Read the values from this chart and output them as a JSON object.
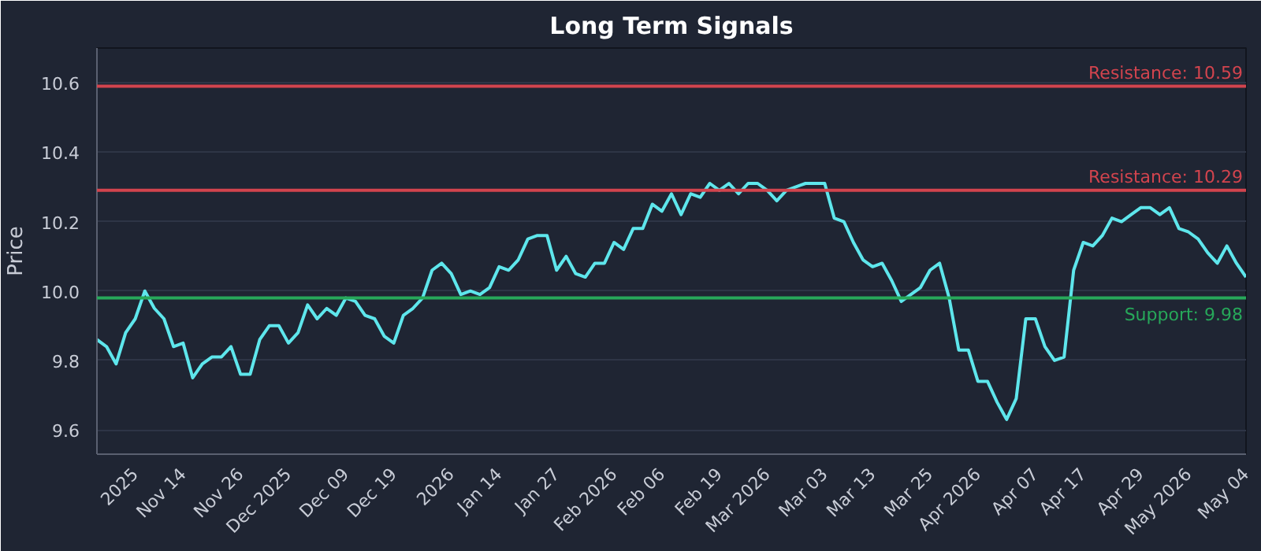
{
  "chart_data": {
    "type": "line",
    "title": "Long Term Signals",
    "ylabel": "Price",
    "categories": [
      null,
      null,
      null,
      null,
      "2025",
      null,
      null,
      null,
      null,
      "Nov 14",
      null,
      null,
      null,
      null,
      null,
      "Nov 26",
      null,
      null,
      null,
      null,
      "Dec 2025",
      null,
      null,
      null,
      null,
      null,
      "Dec 09",
      null,
      null,
      null,
      null,
      "Dec 19",
      null,
      null,
      null,
      null,
      null,
      "2026",
      null,
      null,
      null,
      null,
      "Jan 14",
      null,
      null,
      null,
      null,
      null,
      "Jan 27",
      null,
      null,
      null,
      null,
      null,
      "Feb 2026",
      null,
      null,
      null,
      null,
      "Feb 06",
      null,
      null,
      null,
      null,
      null,
      "Feb 19",
      null,
      null,
      null,
      null,
      "Mar 2026",
      null,
      null,
      null,
      null,
      null,
      "Mar 03",
      null,
      null,
      null,
      null,
      "Mar 13",
      null,
      null,
      null,
      null,
      null,
      "Mar 25",
      null,
      null,
      null,
      null,
      "Apr 2026",
      null,
      null,
      null,
      null,
      null,
      "Apr 07",
      null,
      null,
      null,
      null,
      "Apr 17",
      null,
      null,
      null,
      null,
      null,
      "Apr 29",
      null,
      null,
      null,
      null,
      "May 2026",
      null,
      null,
      null,
      null,
      null,
      "May 04"
    ],
    "series": [
      {
        "color": "#5ee6ec",
        "values": [
          9.86,
          9.84,
          9.79,
          9.88,
          9.92,
          10.0,
          9.95,
          9.92,
          9.84,
          9.85,
          9.75,
          9.79,
          9.81,
          9.81,
          9.84,
          9.76,
          9.76,
          9.86,
          9.9,
          9.9,
          9.85,
          9.88,
          9.96,
          9.92,
          9.95,
          9.93,
          9.98,
          9.97,
          9.93,
          9.92,
          9.87,
          9.85,
          9.93,
          9.95,
          9.98,
          10.06,
          10.08,
          10.05,
          9.99,
          10.0,
          9.99,
          10.01,
          10.07,
          10.06,
          10.09,
          10.15,
          10.16,
          10.16,
          10.06,
          10.1,
          10.05,
          10.04,
          10.08,
          10.08,
          10.14,
          10.12,
          10.18,
          10.18,
          10.25,
          10.23,
          10.28,
          10.22,
          10.28,
          10.27,
          10.31,
          10.29,
          10.31,
          10.28,
          10.31,
          10.31,
          10.29,
          10.26,
          10.29,
          10.3,
          10.31,
          10.31,
          10.31,
          10.21,
          10.2,
          10.14,
          10.09,
          10.07,
          10.08,
          10.03,
          9.97,
          9.99,
          10.01,
          10.06,
          10.08,
          9.98,
          9.83,
          9.83,
          9.74,
          9.74,
          9.68,
          9.63,
          9.69,
          9.92,
          9.92,
          9.84,
          9.8,
          9.81,
          10.06,
          10.14,
          10.13,
          10.16,
          10.21,
          10.2,
          10.22,
          10.24,
          10.24,
          10.22,
          10.24,
          10.18,
          10.17,
          10.15,
          10.11,
          10.08,
          10.13,
          10.08,
          10.04
        ]
      }
    ],
    "ylim": [
      9.53,
      10.7
    ],
    "yticks": [
      {
        "value": 9.6,
        "label": "9.6"
      },
      {
        "value": 9.8,
        "label": "9.8"
      },
      {
        "value": 10.0,
        "label": "10.0"
      },
      {
        "value": 10.2,
        "label": "10.2"
      },
      {
        "value": 10.4,
        "label": "10.4"
      },
      {
        "value": 10.6,
        "label": "10.6"
      }
    ],
    "ref_lines": [
      {
        "axis": "y",
        "value": 10.59,
        "label": "Resistance: 10.59",
        "color": "#d2444e"
      },
      {
        "axis": "y",
        "value": 10.29,
        "label": "Resistance: 10.29",
        "color": "#d2444e"
      },
      {
        "axis": "y",
        "value": 9.98,
        "label": "Support: 9.98",
        "color": "#27a85a"
      }
    ],
    "grid": "y",
    "marker": "none",
    "line_style": "solid"
  }
}
